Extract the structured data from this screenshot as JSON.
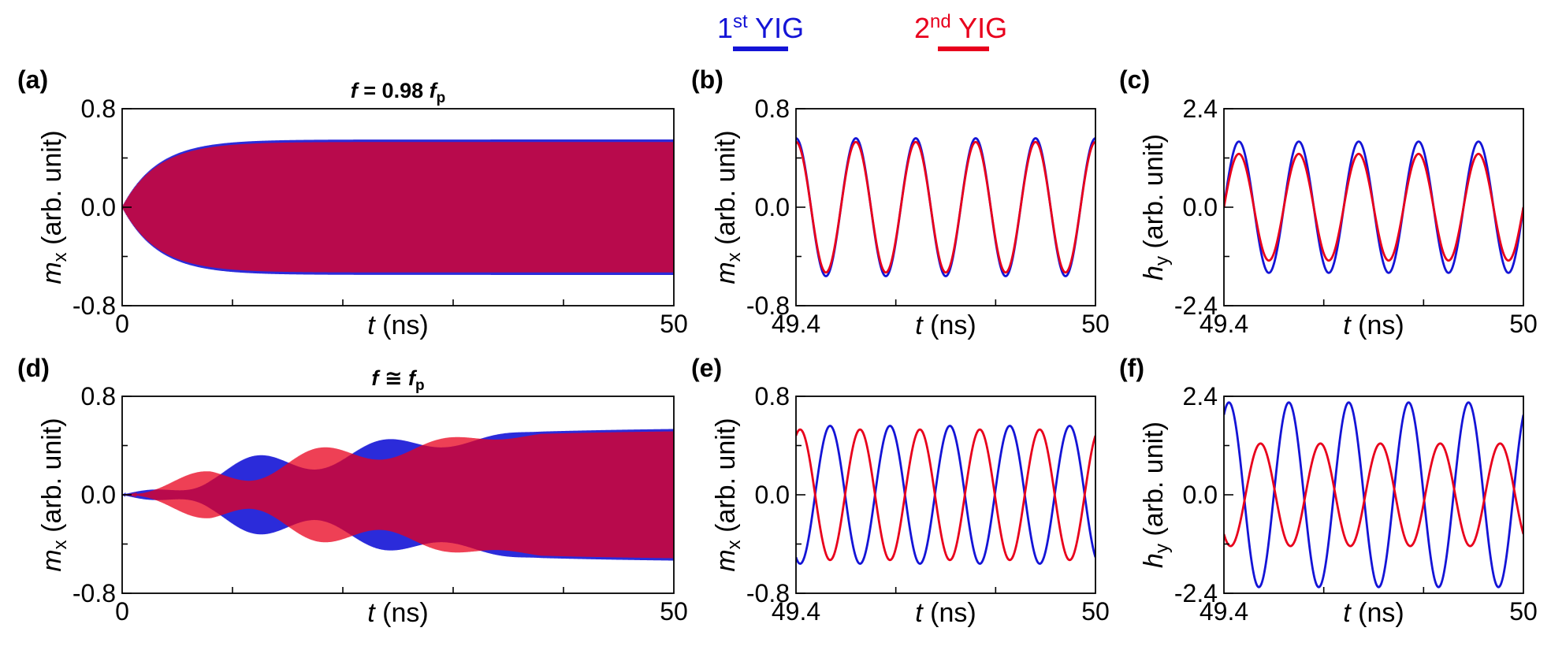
{
  "colors": {
    "yig1": "#1414d6",
    "yig2": "#e8001c",
    "axis": "#000000"
  },
  "legend": {
    "yig1": {
      "base": "1",
      "sup": "st",
      "text": " YIG"
    },
    "yig2": {
      "base": "2",
      "sup": "nd",
      "text": " YIG"
    }
  },
  "chart_data": [
    {
      "id": "a",
      "type": "line",
      "panel_label": "(a)",
      "title": {
        "italic_f": "f",
        "mid": " = 0.98 ",
        "italic_fp": "f",
        "sub": "p"
      },
      "xlabel": {
        "italic": "t",
        "rest": " (ns)"
      },
      "ylabel": {
        "italic": "m",
        "sub": "x",
        "rest": " (arb. unit)"
      },
      "xlim": [
        0,
        50
      ],
      "ylim": [
        -0.8,
        0.8
      ],
      "xtick_labels": [
        "0",
        "50"
      ],
      "xtick_minor_count": 5,
      "ytick_labels": [
        "0.8",
        "0.0",
        "-0.8"
      ],
      "series": [
        {
          "name": "1st YIG",
          "kind": "envelope",
          "amplitude": 0.55,
          "rise_end_ns": 10
        },
        {
          "name": "2nd YIG",
          "kind": "envelope",
          "amplitude": 0.53,
          "rise_end_ns": 10
        }
      ]
    },
    {
      "id": "b",
      "type": "line",
      "panel_label": "(b)",
      "xlabel": {
        "italic": "t",
        "rest": " (ns)"
      },
      "ylabel": {
        "italic": "m",
        "sub": "x",
        "rest": " (arb. unit)"
      },
      "xlim": [
        49.4,
        50
      ],
      "ylim": [
        -0.8,
        0.8
      ],
      "xtick_labels": [
        "49.4",
        "50"
      ],
      "xtick_minor_count": 3,
      "ytick_labels": [
        "0.8",
        "0.0",
        "-0.8"
      ],
      "series": [
        {
          "name": "1st YIG",
          "amplitude": 0.56,
          "cycles": 5,
          "phase_deg": 90
        },
        {
          "name": "2nd YIG",
          "amplitude": 0.53,
          "cycles": 5,
          "phase_deg": 90
        }
      ]
    },
    {
      "id": "c",
      "type": "line",
      "panel_label": "(c)",
      "xlabel": {
        "italic": "t",
        "rest": " (ns)"
      },
      "ylabel": {
        "italic": "h",
        "sub": "y",
        "rest": " (arb. unit)"
      },
      "xlim": [
        49.4,
        50
      ],
      "ylim": [
        -2.4,
        2.4
      ],
      "xtick_labels": [
        "49.4",
        "50"
      ],
      "xtick_minor_count": 3,
      "ytick_labels": [
        "2.4",
        "0.0",
        "-2.4"
      ],
      "series": [
        {
          "name": "1st YIG",
          "amplitude": 1.6,
          "cycles": 5,
          "phase_deg": 0
        },
        {
          "name": "2nd YIG",
          "amplitude": 1.3,
          "cycles": 5,
          "phase_deg": 0
        }
      ]
    },
    {
      "id": "d",
      "type": "line",
      "panel_label": "(d)",
      "title": {
        "italic_f": "f",
        "mid": " ≅ ",
        "italic_fp": "f",
        "sub": "p"
      },
      "xlabel": {
        "italic": "t",
        "rest": " (ns)"
      },
      "ylabel": {
        "italic": "m",
        "sub": "x",
        "rest": " (arb. unit)"
      },
      "xlim": [
        0,
        50
      ],
      "ylim": [
        -0.8,
        0.8
      ],
      "xtick_labels": [
        "0",
        "50"
      ],
      "xtick_minor_count": 5,
      "ytick_labels": [
        "0.8",
        "0.0",
        "-0.8"
      ],
      "series": [
        {
          "name": "1st YIG",
          "kind": "beating",
          "amplitude": 0.55
        },
        {
          "name": "2nd YIG",
          "kind": "beating",
          "amplitude": 0.53
        }
      ]
    },
    {
      "id": "e",
      "type": "line",
      "panel_label": "(e)",
      "xlabel": {
        "italic": "t",
        "rest": " (ns)"
      },
      "ylabel": {
        "italic": "m",
        "sub": "x",
        "rest": " (arb. unit)"
      },
      "xlim": [
        49.4,
        50
      ],
      "ylim": [
        -0.8,
        0.8
      ],
      "xtick_labels": [
        "49.4",
        "50"
      ],
      "xtick_minor_count": 3,
      "ytick_labels": [
        "0.8",
        "0.0",
        "-0.8"
      ],
      "series": [
        {
          "name": "1st YIG",
          "amplitude": 0.56,
          "cycles": 5,
          "phase_deg": 245
        },
        {
          "name": "2nd YIG",
          "amplitude": 0.53,
          "cycles": 5,
          "phase_deg": 65
        }
      ]
    },
    {
      "id": "f",
      "type": "line",
      "panel_label": "(f)",
      "xlabel": {
        "italic": "t",
        "rest": " (ns)"
      },
      "ylabel": {
        "italic": "h",
        "sub": "y",
        "rest": " (arb. unit)"
      },
      "xlim": [
        49.4,
        50
      ],
      "ylim": [
        -2.4,
        2.4
      ],
      "xtick_labels": [
        "49.4",
        "50"
      ],
      "xtick_minor_count": 3,
      "ytick_labels": [
        "2.4",
        "0.0",
        "-2.4"
      ],
      "series": [
        {
          "name": "1st YIG",
          "amplitude": 2.25,
          "cycles": 5,
          "phase_deg": 60
        },
        {
          "name": "2nd YIG",
          "amplitude": 1.25,
          "cycles": 5,
          "phase_deg": 230
        }
      ]
    }
  ]
}
